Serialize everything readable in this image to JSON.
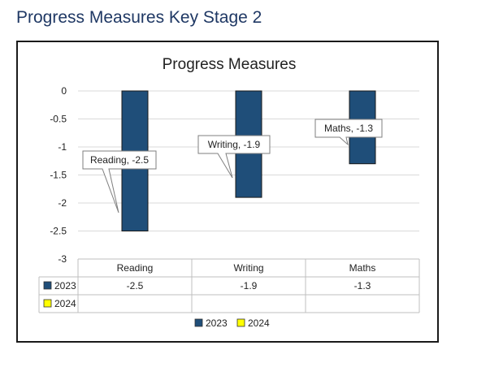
{
  "page": {
    "heading": "Progress Measures Key Stage 2"
  },
  "chart_data": {
    "type": "bar",
    "title": "Progress Measures",
    "categories": [
      "Reading",
      "Writing",
      "Maths"
    ],
    "series": [
      {
        "name": "2023",
        "values": [
          -2.5,
          -1.9,
          -1.3
        ],
        "color": "#1f4e79"
      },
      {
        "name": "2024",
        "values": [
          null,
          null,
          null
        ],
        "color": "#ffff00"
      }
    ],
    "ylim": [
      -3,
      0
    ],
    "yticks": [
      0,
      -0.5,
      -1,
      -1.5,
      -2,
      -2.5,
      -3
    ],
    "ytick_labels": [
      "0",
      "-0.5",
      "-1",
      "-1.5",
      "-2",
      "-2.5",
      "-3"
    ],
    "callouts": [
      "Reading, -2.5",
      "Writing, -1.9",
      "Maths, -1.3"
    ],
    "data_table": {
      "headers": [
        "Reading",
        "Writing",
        "Maths"
      ],
      "rows": [
        {
          "label": "2023",
          "cells": [
            "-2.5",
            "-1.9",
            "-1.3"
          ]
        },
        {
          "label": "2024",
          "cells": [
            "",
            "",
            ""
          ]
        }
      ]
    },
    "legend": [
      "2023",
      "2024"
    ],
    "legend_position": "bottom",
    "grid": true
  }
}
